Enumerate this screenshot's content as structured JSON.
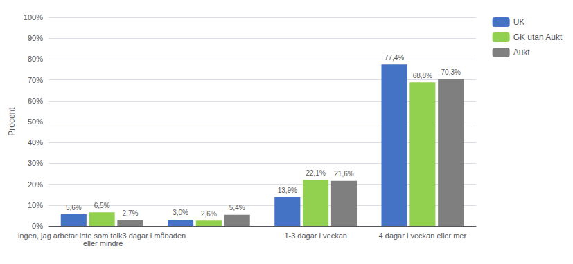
{
  "chart_data": {
    "type": "bar",
    "categories": [
      "ingen, jag arbetar inte som tolk3 dagar i månaden eller mindre",
      null,
      "1-3 dagar i veckan",
      "4 dagar i veckan eller mer"
    ],
    "series": [
      {
        "name": "UK",
        "color": "#4472C4",
        "values": [
          5.6,
          3.0,
          13.9,
          77.4
        ],
        "value_labels": [
          "5,6%",
          "3,0%",
          "13,9%",
          "77,4%"
        ]
      },
      {
        "name": "GK utan Aukt",
        "color": "#92D050",
        "values": [
          6.5,
          2.6,
          22.1,
          68.8
        ],
        "value_labels": [
          "6,5%",
          "2,6%",
          "22,1%",
          "68,8%"
        ]
      },
      {
        "name": "Aukt",
        "color": "#7F7F7F",
        "values": [
          2.7,
          5.4,
          21.6,
          70.3
        ],
        "value_labels": [
          "2,7%",
          "5,4%",
          "21,6%",
          "70,3%"
        ]
      }
    ],
    "ylabel": "Procent",
    "ylim": [
      0,
      100
    ],
    "yticks": [
      {
        "value": 0,
        "label": "0%"
      },
      {
        "value": 10,
        "label": "10%"
      },
      {
        "value": 20,
        "label": "20%"
      },
      {
        "value": 30,
        "label": "30%"
      },
      {
        "value": 40,
        "label": "40%"
      },
      {
        "value": 50,
        "label": "50%"
      },
      {
        "value": 60,
        "label": "60%"
      },
      {
        "value": 70,
        "label": "70%"
      },
      {
        "value": 80,
        "label": "80%"
      },
      {
        "value": 90,
        "label": "90%"
      },
      {
        "value": 100,
        "label": "100%"
      }
    ],
    "grid": true,
    "legend": "upper right",
    "data_labels": true
  }
}
